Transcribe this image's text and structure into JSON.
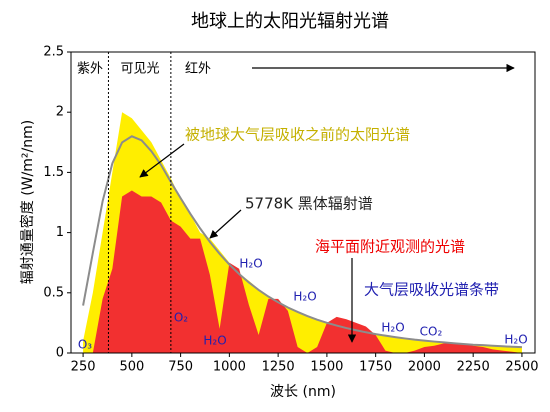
{
  "chart_data": {
    "type": "area",
    "title": "地球上的太阳光辐射光谱",
    "x_label": "波长 (nm)",
    "y_label": "辐射通量密度 (W/m²/nm)",
    "xlim": [
      188,
      2567
    ],
    "ylim": [
      0,
      2.5
    ],
    "xticks": [
      250,
      500,
      750,
      1000,
      1250,
      1500,
      1750,
      2000,
      2250,
      2500
    ],
    "yticks": [
      0,
      0.5,
      1,
      1.5,
      2,
      2.5
    ],
    "grid": false,
    "x": [
      250,
      300,
      350,
      400,
      450,
      500,
      550,
      600,
      650,
      700,
      750,
      800,
      850,
      900,
      950,
      1000,
      1050,
      1100,
      1150,
      1200,
      1250,
      1300,
      1350,
      1400,
      1450,
      1500,
      1550,
      1600,
      1650,
      1700,
      1750,
      1800,
      1850,
      1900,
      1950,
      2000,
      2050,
      2100,
      2150,
      2200,
      2250,
      2300,
      2350,
      2400,
      2450,
      2500
    ],
    "series": [
      {
        "name": "被地球大气层吸收之前的太阳光谱",
        "color": "#ffee00",
        "type": "area",
        "values": [
          0.1,
          0.5,
          1.0,
          1.5,
          2.0,
          1.95,
          1.85,
          1.75,
          1.6,
          1.45,
          1.28,
          1.15,
          1.0,
          0.95,
          0.85,
          0.75,
          0.66,
          0.6,
          0.53,
          0.47,
          0.42,
          0.38,
          0.34,
          0.3,
          0.27,
          0.25,
          0.23,
          0.21,
          0.19,
          0.17,
          0.155,
          0.14,
          0.13,
          0.12,
          0.11,
          0.1,
          0.09,
          0.085,
          0.08,
          0.075,
          0.07,
          0.065,
          0.06,
          0.055,
          0.05,
          0.048
        ]
      },
      {
        "name": "海平面附近观测的光谱",
        "color": "#f23030",
        "type": "area",
        "values": [
          0,
          0,
          0.45,
          0.7,
          1.3,
          1.35,
          1.3,
          1.3,
          1.25,
          1.1,
          1.05,
          0.95,
          0.95,
          0.65,
          0.2,
          0.75,
          0.7,
          0.4,
          0.15,
          0.45,
          0.45,
          0.35,
          0.05,
          0,
          0.05,
          0.25,
          0.3,
          0.28,
          0.25,
          0.22,
          0.15,
          0.02,
          0,
          0,
          0.02,
          0.05,
          0.06,
          0.08,
          0.08,
          0.08,
          0.06,
          0.05,
          0.03,
          0.02,
          0.01,
          0
        ]
      },
      {
        "name": "5778K 黑体辐射谱",
        "color": "#8c8c8c",
        "type": "line",
        "values": [
          0.394,
          0.832,
          1.26,
          1.575,
          1.749,
          1.8,
          1.766,
          1.676,
          1.561,
          1.42,
          1.286,
          1.156,
          1.035,
          0.923,
          0.824,
          0.735,
          0.656,
          0.586,
          0.524,
          0.469,
          0.421,
          0.378,
          0.341,
          0.307,
          0.277,
          0.251,
          0.228,
          0.207,
          0.189,
          0.172,
          0.157,
          0.144,
          0.132,
          0.121,
          0.111,
          0.103,
          0.095,
          0.088,
          0.081,
          0.075,
          0.069,
          0.065,
          0.06,
          0.056,
          0.052,
          0.049
        ]
      }
    ],
    "band_edges": [
      380,
      700
    ],
    "bands": [
      "紫外",
      "可见光",
      "红外"
    ],
    "absorption_title": "大气层吸收光谱条带",
    "absorption_labels": [
      "O₃",
      "O₂",
      "H₂O",
      "H₂O",
      "H₂O",
      "H₂O",
      "CO₂",
      "H₂O"
    ]
  }
}
